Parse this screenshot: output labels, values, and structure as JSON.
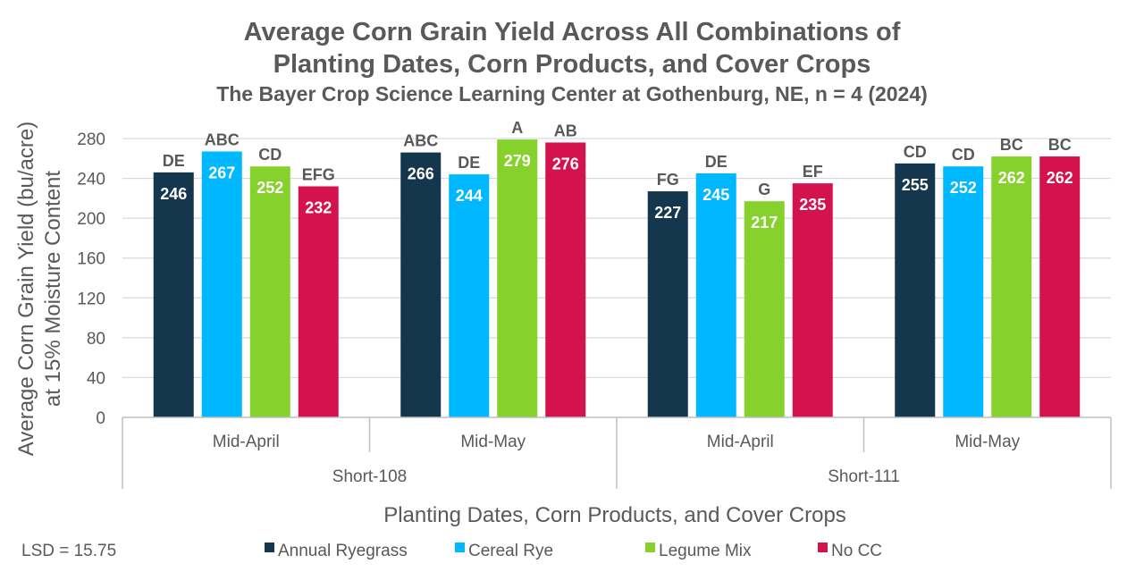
{
  "chart_data": {
    "type": "bar",
    "title": "Average Corn Grain Yield Across All Combinations of",
    "title_line2": "Planting Dates, Corn Products, and Cover Crops",
    "subtitle": "The Bayer Crop Science Learning Center at Gothenburg, NE, n = 4 (2024)",
    "ylabel_line1": "Average Corn Grain Yield (bu/acre)",
    "ylabel_line2": "at 15% Moisture Content",
    "xlabel": "Planting Dates, Corn Products, and Cover Crops",
    "ylim": [
      0,
      280
    ],
    "yticks": [
      "0",
      "40",
      "80",
      "120",
      "160",
      "200",
      "240",
      "280"
    ],
    "grid": true,
    "legend_position": "bottom",
    "groups": [
      {
        "name": "Short-108",
        "categories": [
          {
            "name": "Mid-April",
            "values": [
              246,
              267,
              252,
              232
            ],
            "labels": [
              "DE",
              "ABC",
              "CD",
              "EFG"
            ]
          },
          {
            "name": "Mid-May",
            "values": [
              266,
              244,
              279,
              276
            ],
            "labels": [
              "ABC",
              "DE",
              "A",
              "AB"
            ]
          }
        ]
      },
      {
        "name": "Short-111",
        "categories": [
          {
            "name": "Mid-April",
            "values": [
              227,
              245,
              217,
              235
            ],
            "labels": [
              "FG",
              "DE",
              "G",
              "EF"
            ]
          },
          {
            "name": "Mid-May",
            "values": [
              255,
              252,
              262,
              262
            ],
            "labels": [
              "CD",
              "CD",
              "BC",
              "BC"
            ]
          }
        ]
      }
    ],
    "series": [
      {
        "name": "Annual Ryegrass",
        "color": "#14374e"
      },
      {
        "name": "Cereal Rye",
        "color": "#00b8ff"
      },
      {
        "name": "Legume Mix",
        "color": "#86d12b"
      },
      {
        "name": "No CC",
        "color": "#d4124d"
      }
    ],
    "footnote": "LSD = 15.75",
    "colors": {
      "text": "#595959",
      "grid": "#d9d9d9",
      "axis": "#bfbfbf"
    }
  }
}
